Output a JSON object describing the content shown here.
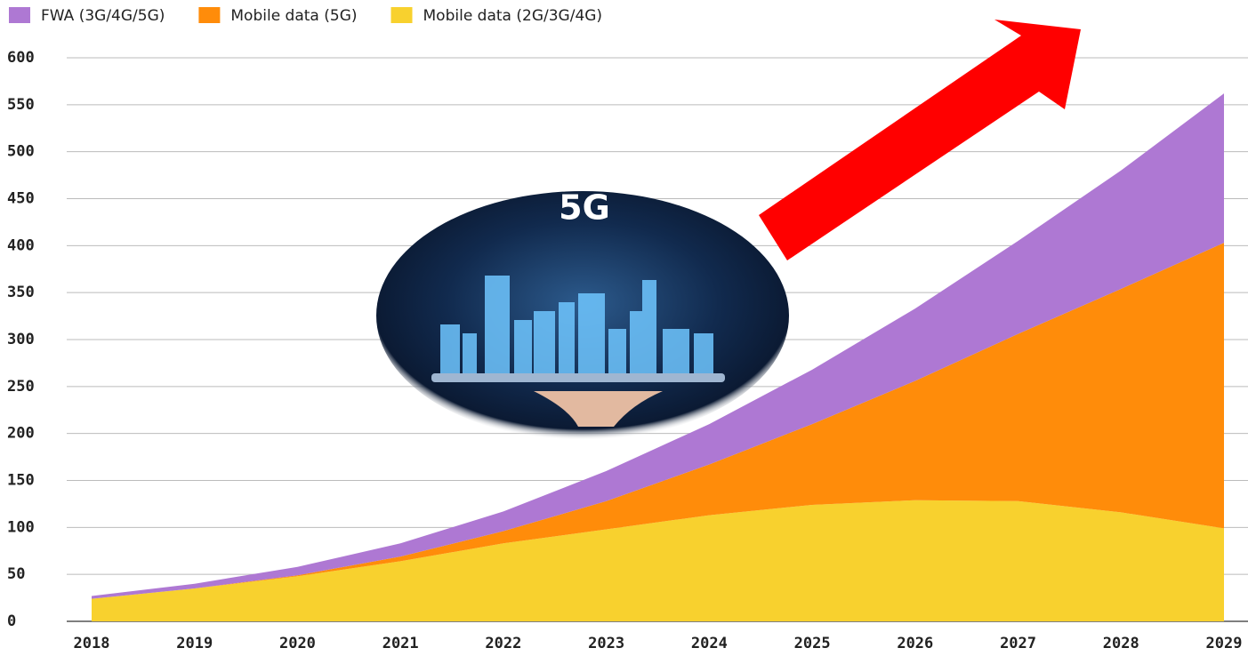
{
  "chart_data": {
    "type": "stacked_area",
    "x": [
      2018,
      2019,
      2020,
      2021,
      2022,
      2023,
      2024,
      2025,
      2026,
      2027,
      2028,
      2029
    ],
    "series": [
      {
        "name": "FWA (3G/4G/5G)",
        "color": "#ae78d3",
        "values": [
          3,
          5,
          9,
          14,
          21,
          32,
          43,
          58,
          77,
          99,
          126,
          159
        ]
      },
      {
        "name": "Mobile data (5G)",
        "color": "#ff8c0a",
        "values": [
          0,
          0,
          1,
          5,
          13,
          30,
          54,
          86,
          127,
          178,
          238,
          304
        ]
      },
      {
        "name": "Mobile data (2G/3G/4G)",
        "color": "#f8d12e",
        "values": [
          24,
          35,
          48,
          64,
          83,
          98,
          113,
          124,
          129,
          128,
          116,
          99
        ]
      }
    ],
    "xlim": [
      2018,
      2029
    ],
    "xticks": [
      2018,
      2019,
      2020,
      2021,
      2022,
      2023,
      2024,
      2025,
      2026,
      2027,
      2028,
      2029
    ],
    "ylim": [
      0,
      600
    ],
    "yticks": [
      0,
      50,
      100,
      150,
      200,
      250,
      300,
      350,
      400,
      450,
      500,
      550,
      600
    ],
    "grid": true,
    "legend": "top",
    "annotation": "5G"
  }
}
